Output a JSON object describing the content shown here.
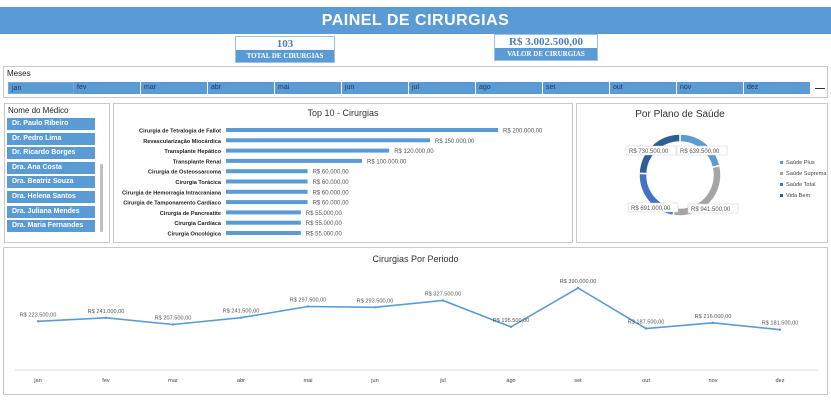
{
  "header": {
    "title": "PAINEL DE CIRURGIAS"
  },
  "kpis": {
    "total_value": "103",
    "total_label": "TOTAL DE CIRURGIAS",
    "valor_value": "R$ 3.002.500,00",
    "valor_label": "VALOR DE CIRURGIAS"
  },
  "months_slicer": {
    "title": "Meses",
    "items": [
      "jan",
      "fev",
      "mar",
      "abr",
      "mai",
      "jun",
      "jul",
      "ago",
      "set",
      "out",
      "nov",
      "dez"
    ]
  },
  "doctor_slicer": {
    "title": "Nome do Médico",
    "items": [
      "Dr. Paulo Ribeiro",
      "Dr. Pedro Lima",
      "Dr. Ricardo Borges",
      "Dra. Ana Costa",
      "Dra. Beatriz Souza",
      "Dra. Helena Santos",
      "Dra. Juliana Mendes",
      "Dra. Maria Fernandes"
    ]
  },
  "colors": {
    "accent": "#5b9bd5",
    "dark_blue": "#2e5f94",
    "gray": "#a5a5a5",
    "line": "#5b9bd5"
  },
  "chart_data": [
    {
      "type": "bar",
      "orientation": "horizontal",
      "title": "Top 10 - Cirurgias",
      "categories": [
        "Cirurgia de Tetralogia de Fallot",
        "Revascularização Miocárdica",
        "Transplante Hepático",
        "Transplante Renal",
        "Cirurgia de Osteossarcoma",
        "Cirurgia Torácica",
        "Cirurgia de Hemorragia Intracraniana",
        "Cirurgia de Tamponamento Cardíaco",
        "Cirurgia de Pancreatite",
        "Cirurgia Cardíaca",
        "Cirurgia Oncológica"
      ],
      "values": [
        200000,
        150000,
        120000,
        100000,
        60000,
        60000,
        60000,
        60000,
        55000,
        55000,
        55000
      ],
      "labels": [
        "R$ 200.000,00",
        "R$ 150.000,00",
        "R$ 120.000,00",
        "R$ 100.000,00",
        "R$ 60.000,00",
        "R$ 60.000,00",
        "R$ 60.000,00",
        "R$ 60.000,00",
        "R$ 55.000,00",
        "R$ 55.000,00",
        "R$ 55.000,00"
      ],
      "xlim": [
        0,
        200000
      ]
    },
    {
      "type": "pie",
      "donut": true,
      "title": "Por Plano de Saúde",
      "legend_position": "right",
      "series": [
        {
          "name": "Saúde Plus",
          "value": 639500,
          "label": "R$ 639.500,00",
          "color": "#5b9bd5"
        },
        {
          "name": "Saúde Suprema",
          "value": 941500,
          "label": "R$ 941.500,00",
          "color": "#a5a5a5"
        },
        {
          "name": "Saúde Total",
          "value": 691000,
          "label": "R$ 691.000,00",
          "color": "#4472c4"
        },
        {
          "name": "Vida Bem",
          "value": 730500,
          "label": "R$ 730.500,00",
          "color": "#2e5f94"
        }
      ]
    },
    {
      "type": "line",
      "title": "Cirurgias Por Periodo",
      "categories": [
        "jan",
        "fev",
        "mar",
        "abr",
        "mai",
        "jun",
        "jul",
        "ago",
        "set",
        "out",
        "nov",
        "dez"
      ],
      "values": [
        223500,
        241000,
        207500,
        241500,
        297500,
        293500,
        327500,
        195500,
        390000,
        187500,
        216000,
        181500
      ],
      "labels": [
        "R$ 223.500,00",
        "R$ 241.000,00",
        "R$ 207.500,00",
        "R$ 241.500,00",
        "R$ 297.500,00",
        "R$ 293.500,00",
        "R$ 327.500,00",
        "R$ 195.500,00",
        "R$ 390.000,00",
        "R$ 187.500,00",
        "R$ 216.000,00",
        "R$ 181.500,00"
      ],
      "ylim": [
        0,
        420000
      ]
    }
  ]
}
